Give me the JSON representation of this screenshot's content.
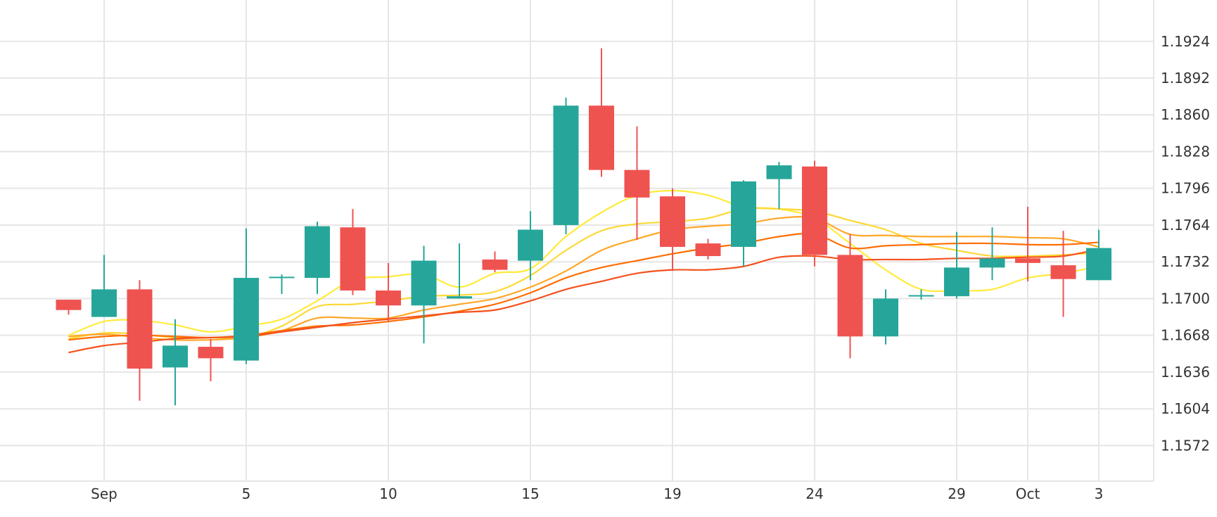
{
  "chart_data": {
    "type": "candlestick",
    "title": "",
    "xlabel": "",
    "ylabel": "",
    "ylim": [
      1.1541,
      1.196
    ],
    "y_ticks": [
      "1.1572",
      "1.1604",
      "1.1636",
      "1.1668",
      "1.1700",
      "1.1732",
      "1.1764",
      "1.1796",
      "1.1828",
      "1.1860",
      "1.1892",
      "1.1924"
    ],
    "x_ticks": [
      {
        "label": "Sep",
        "index": 1
      },
      {
        "label": "5",
        "index": 5
      },
      {
        "label": "10",
        "index": 9
      },
      {
        "label": "15",
        "index": 13
      },
      {
        "label": "19",
        "index": 17
      },
      {
        "label": "24",
        "index": 21
      },
      {
        "label": "29",
        "index": 25
      },
      {
        "label": "Oct",
        "index": 27
      },
      {
        "label": "3",
        "index": 29
      }
    ],
    "grid": true,
    "colors": {
      "up": "#26a69a",
      "down": "#ef5350",
      "grid": "#e6e6e6",
      "axis_text": "#333333"
    },
    "candles": [
      {
        "o": 1.1699,
        "h": 1.1699,
        "l": 1.1686,
        "c": 1.169
      },
      {
        "o": 1.1684,
        "h": 1.1738,
        "l": 1.1684,
        "c": 1.1708
      },
      {
        "o": 1.1708,
        "h": 1.1716,
        "l": 1.1611,
        "c": 1.1639
      },
      {
        "o": 1.164,
        "h": 1.1682,
        "l": 1.1607,
        "c": 1.1659
      },
      {
        "o": 1.1658,
        "h": 1.1665,
        "l": 1.1628,
        "c": 1.1648
      },
      {
        "o": 1.1646,
        "h": 1.1761,
        "l": 1.1643,
        "c": 1.1718
      },
      {
        "o": 1.1718,
        "h": 1.1721,
        "l": 1.1704,
        "c": 1.1719
      },
      {
        "o": 1.1718,
        "h": 1.1767,
        "l": 1.1704,
        "c": 1.1763
      },
      {
        "o": 1.1762,
        "h": 1.1778,
        "l": 1.1703,
        "c": 1.1707
      },
      {
        "o": 1.1707,
        "h": 1.1731,
        "l": 1.168,
        "c": 1.1694
      },
      {
        "o": 1.1694,
        "h": 1.1746,
        "l": 1.1661,
        "c": 1.1733
      },
      {
        "o": 1.17,
        "h": 1.1748,
        "l": 1.17,
        "c": 1.1702
      },
      {
        "o": 1.1734,
        "h": 1.1741,
        "l": 1.1723,
        "c": 1.1725
      },
      {
        "o": 1.1733,
        "h": 1.1776,
        "l": 1.1716,
        "c": 1.176
      },
      {
        "o": 1.1764,
        "h": 1.1875,
        "l": 1.1756,
        "c": 1.1868
      },
      {
        "o": 1.1868,
        "h": 1.1918,
        "l": 1.1806,
        "c": 1.1812
      },
      {
        "o": 1.1812,
        "h": 1.185,
        "l": 1.1751,
        "c": 1.1788
      },
      {
        "o": 1.1789,
        "h": 1.1796,
        "l": 1.1724,
        "c": 1.1745
      },
      {
        "o": 1.1748,
        "h": 1.1752,
        "l": 1.1734,
        "c": 1.1737
      },
      {
        "o": 1.1745,
        "h": 1.1803,
        "l": 1.1728,
        "c": 1.1802
      },
      {
        "o": 1.1804,
        "h": 1.1819,
        "l": 1.1778,
        "c": 1.1816
      },
      {
        "o": 1.1815,
        "h": 1.182,
        "l": 1.1728,
        "c": 1.1738
      },
      {
        "o": 1.1738,
        "h": 1.1756,
        "l": 1.1648,
        "c": 1.1667
      },
      {
        "o": 1.1667,
        "h": 1.1708,
        "l": 1.166,
        "c": 1.17
      },
      {
        "o": 1.1703,
        "h": 1.1708,
        "l": 1.1699,
        "c": 1.1703
      },
      {
        "o": 1.1702,
        "h": 1.1758,
        "l": 1.17,
        "c": 1.1727
      },
      {
        "o": 1.1727,
        "h": 1.1762,
        "l": 1.1716,
        "c": 1.1735
      },
      {
        "o": 1.1735,
        "h": 1.178,
        "l": 1.1715,
        "c": 1.1731
      },
      {
        "o": 1.1729,
        "h": 1.1759,
        "l": 1.1684,
        "c": 1.1717
      },
      {
        "o": 1.1716,
        "h": 1.176,
        "l": 1.1716,
        "c": 1.1744
      }
    ],
    "moving_averages": [
      {
        "color": "#ffeb3b",
        "values": [
          1.1668,
          1.168,
          1.1681,
          1.1677,
          1.1671,
          1.1676,
          1.1682,
          1.1698,
          1.1716,
          1.1719,
          1.1721,
          1.171,
          1.1722,
          1.1726,
          1.1754,
          1.1775,
          1.179,
          1.1794,
          1.179,
          1.178,
          1.1778,
          1.177,
          1.1748,
          1.1725,
          1.1708,
          1.1707,
          1.1708,
          1.1718,
          1.1722,
          1.1728
        ]
      },
      {
        "color": "#fdd835",
        "values": [
          1.1665,
          1.167,
          1.1669,
          1.1666,
          1.1666,
          1.1666,
          1.1676,
          1.1693,
          1.1695,
          1.1698,
          1.1702,
          1.1703,
          1.1706,
          1.172,
          1.1742,
          1.1759,
          1.1765,
          1.1767,
          1.177,
          1.1778,
          1.1778,
          1.1776,
          1.1768,
          1.176,
          1.1748,
          1.1742,
          1.1737,
          1.1737,
          1.1738,
          1.174
        ]
      },
      {
        "color": "#ffa726",
        "values": [
          1.1667,
          1.1669,
          1.1666,
          1.1664,
          1.1664,
          1.1666,
          1.1672,
          1.1683,
          1.1683,
          1.1683,
          1.169,
          1.1695,
          1.17,
          1.171,
          1.1724,
          1.1742,
          1.1752,
          1.176,
          1.1763,
          1.1765,
          1.177,
          1.177,
          1.1756,
          1.1755,
          1.1754,
          1.1754,
          1.1754,
          1.1753,
          1.1752,
          1.1745
        ]
      },
      {
        "color": "#ff6d00",
        "values": [
          1.1664,
          1.1667,
          1.1668,
          1.1667,
          1.1666,
          1.1668,
          1.1672,
          1.1676,
          1.1677,
          1.168,
          1.1684,
          1.1689,
          1.1695,
          1.1705,
          1.1718,
          1.1727,
          1.1733,
          1.1739,
          1.1744,
          1.1748,
          1.1754,
          1.1756,
          1.1744,
          1.1746,
          1.1747,
          1.1748,
          1.1748,
          1.1747,
          1.1747,
          1.1749
        ]
      },
      {
        "color": "#f4511e",
        "values": [
          1.1653,
          1.1659,
          1.1662,
          1.1665,
          1.1666,
          1.1667,
          1.1671,
          1.1675,
          1.1679,
          1.1682,
          1.1685,
          1.1688,
          1.169,
          1.1698,
          1.1708,
          1.1715,
          1.1722,
          1.1725,
          1.1725,
          1.1728,
          1.1736,
          1.1737,
          1.1734,
          1.1734,
          1.1734,
          1.1735,
          1.1735,
          1.1736,
          1.1737,
          1.1743
        ]
      }
    ]
  }
}
